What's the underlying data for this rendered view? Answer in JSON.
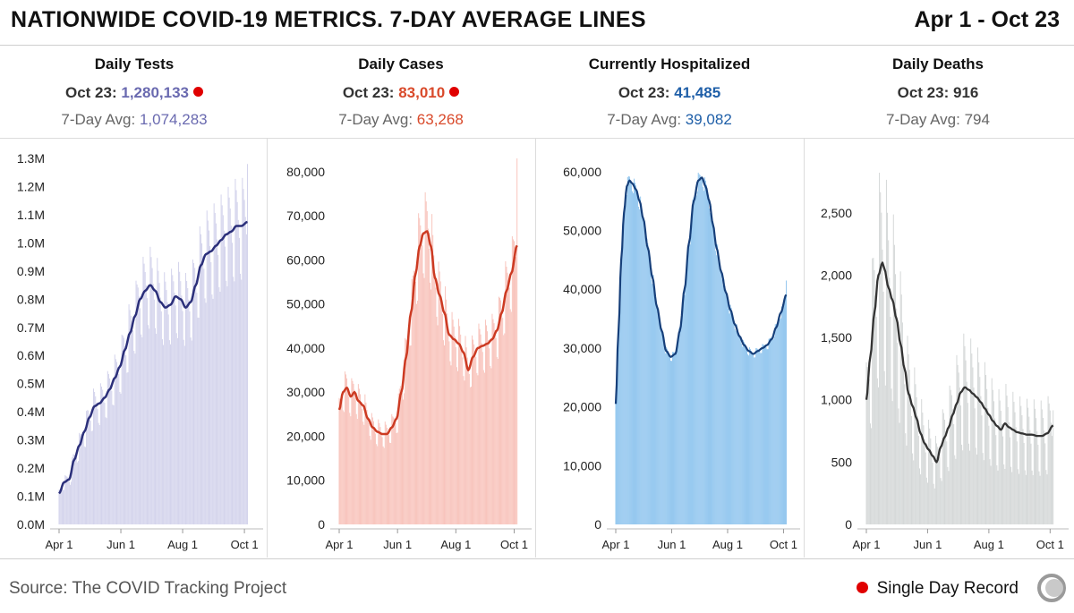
{
  "header": {
    "title": "NATIONWIDE COVID-19 METRICS. 7-DAY AVERAGE LINES",
    "date_range": "Apr 1 - Oct 23"
  },
  "panels": [
    {
      "title": "Daily Tests",
      "latest_label": "Oct 23:",
      "latest_value": "1,280,133",
      "record": true,
      "avg_label": "7-Day Avg:",
      "avg_value": "1,074,283",
      "latest_color": "#6a6ab0",
      "avg_color": "#6a6ab0"
    },
    {
      "title": "Daily Cases",
      "latest_label": "Oct 23:",
      "latest_value": "83,010",
      "record": true,
      "avg_label": "7-Day Avg:",
      "avg_value": "63,268",
      "latest_color": "#d94a2b",
      "avg_color": "#d94a2b"
    },
    {
      "title": "Currently Hospitalized",
      "latest_label": "Oct 23:",
      "latest_value": "41,485",
      "record": false,
      "avg_label": "7-Day Avg:",
      "avg_value": "39,082",
      "latest_color": "#1f5fa8",
      "avg_color": "#1f5fa8"
    },
    {
      "title": "Daily Deaths",
      "latest_label": "Oct 23:",
      "latest_value": "916",
      "record": false,
      "avg_label": "7-Day Avg:",
      "avg_value": "794",
      "latest_color": "#333333",
      "avg_color": "#666666"
    }
  ],
  "chart_data": [
    {
      "type": "bar",
      "title": "Daily Tests",
      "x_ticks": [
        "Apr 1",
        "Jun 1",
        "Aug 1",
        "Oct 1"
      ],
      "y_ticks": [
        "0.0M",
        "0.1M",
        "0.2M",
        "0.3M",
        "0.4M",
        "0.5M",
        "0.6M",
        "0.7M",
        "0.8M",
        "0.9M",
        "1.0M",
        "1.1M",
        "1.2M",
        "1.3M"
      ],
      "ylim": [
        0,
        1300000
      ],
      "bar_color": "#d4d4ec",
      "line_color": "#2b2f7a",
      "avg_keyframes": [
        [
          0,
          110000
        ],
        [
          5,
          150000
        ],
        [
          10,
          160000
        ],
        [
          15,
          230000
        ],
        [
          20,
          280000
        ],
        [
          25,
          330000
        ],
        [
          30,
          380000
        ],
        [
          35,
          420000
        ],
        [
          40,
          430000
        ],
        [
          45,
          450000
        ],
        [
          50,
          480000
        ],
        [
          55,
          520000
        ],
        [
          60,
          560000
        ],
        [
          65,
          620000
        ],
        [
          70,
          680000
        ],
        [
          75,
          740000
        ],
        [
          80,
          800000
        ],
        [
          85,
          830000
        ],
        [
          90,
          850000
        ],
        [
          95,
          830000
        ],
        [
          100,
          790000
        ],
        [
          105,
          770000
        ],
        [
          110,
          780000
        ],
        [
          115,
          810000
        ],
        [
          120,
          800000
        ],
        [
          125,
          770000
        ],
        [
          130,
          790000
        ],
        [
          135,
          850000
        ],
        [
          140,
          920000
        ],
        [
          145,
          960000
        ],
        [
          150,
          970000
        ],
        [
          155,
          990000
        ],
        [
          160,
          1010000
        ],
        [
          165,
          1030000
        ],
        [
          170,
          1040000
        ],
        [
          175,
          1060000
        ],
        [
          180,
          1060000
        ],
        [
          186,
          1074283
        ]
      ],
      "bar_peaks": [
        [
          186,
          1280133
        ]
      ],
      "bar_spread": 0.14,
      "line_width": 2.5
    },
    {
      "type": "bar",
      "title": "Daily Cases",
      "x_ticks": [
        "Apr 1",
        "Jun 1",
        "Aug 1",
        "Oct 1"
      ],
      "y_ticks": [
        "0",
        "10,000",
        "20,000",
        "30,000",
        "40,000",
        "50,000",
        "60,000",
        "70,000",
        "80,000"
      ],
      "ylim": [
        0,
        82000
      ],
      "bar_color": "#f8c3bb",
      "line_color": "#cc3a22",
      "avg_keyframes": [
        [
          0,
          26000
        ],
        [
          4,
          30000
        ],
        [
          8,
          31000
        ],
        [
          12,
          29000
        ],
        [
          16,
          30000
        ],
        [
          20,
          28000
        ],
        [
          25,
          27000
        ],
        [
          30,
          24000
        ],
        [
          35,
          22000
        ],
        [
          40,
          21000
        ],
        [
          45,
          20500
        ],
        [
          50,
          20500
        ],
        [
          55,
          22000
        ],
        [
          60,
          24000
        ],
        [
          65,
          30000
        ],
        [
          70,
          38000
        ],
        [
          75,
          48000
        ],
        [
          80,
          57000
        ],
        [
          84,
          63000
        ],
        [
          88,
          66000
        ],
        [
          92,
          66500
        ],
        [
          96,
          63000
        ],
        [
          100,
          56000
        ],
        [
          105,
          52000
        ],
        [
          110,
          48000
        ],
        [
          115,
          43000
        ],
        [
          120,
          42000
        ],
        [
          125,
          41000
        ],
        [
          130,
          39000
        ],
        [
          135,
          35000
        ],
        [
          140,
          38000
        ],
        [
          145,
          40000
        ],
        [
          150,
          40500
        ],
        [
          155,
          41000
        ],
        [
          160,
          42000
        ],
        [
          165,
          44000
        ],
        [
          170,
          48000
        ],
        [
          175,
          53000
        ],
        [
          180,
          57000
        ],
        [
          186,
          63268
        ]
      ],
      "bar_peaks": [
        [
          186,
          83010
        ]
      ],
      "bar_spread": 0.12,
      "line_width": 2.5
    },
    {
      "type": "area",
      "title": "Currently Hospitalized",
      "x_ticks": [
        "Apr 1",
        "Jun 1",
        "Aug 1",
        "Oct 1"
      ],
      "y_ticks": [
        "0",
        "10,000",
        "20,000",
        "30,000",
        "40,000",
        "50,000",
        "60,000"
      ],
      "ylim": [
        0,
        61500
      ],
      "bar_color": "#8ec4ee",
      "line_color": "#163f7a",
      "avg_keyframes": [
        [
          0,
          20500
        ],
        [
          3,
          33000
        ],
        [
          6,
          45000
        ],
        [
          9,
          53000
        ],
        [
          12,
          57500
        ],
        [
          15,
          58500
        ],
        [
          18,
          58000
        ],
        [
          22,
          57000
        ],
        [
          26,
          55000
        ],
        [
          30,
          52000
        ],
        [
          35,
          47000
        ],
        [
          40,
          42000
        ],
        [
          45,
          37000
        ],
        [
          50,
          33000
        ],
        [
          55,
          29500
        ],
        [
          60,
          28500
        ],
        [
          65,
          29000
        ],
        [
          70,
          33000
        ],
        [
          75,
          40000
        ],
        [
          80,
          48000
        ],
        [
          85,
          55000
        ],
        [
          90,
          58500
        ],
        [
          94,
          59000
        ],
        [
          98,
          57500
        ],
        [
          102,
          55000
        ],
        [
          106,
          51000
        ],
        [
          110,
          47000
        ],
        [
          115,
          43000
        ],
        [
          120,
          39500
        ],
        [
          125,
          36500
        ],
        [
          130,
          34000
        ],
        [
          135,
          32000
        ],
        [
          140,
          30500
        ],
        [
          145,
          29500
        ],
        [
          150,
          29000
        ],
        [
          155,
          29500
        ],
        [
          160,
          30000
        ],
        [
          165,
          30500
        ],
        [
          170,
          31500
        ],
        [
          175,
          33500
        ],
        [
          180,
          36000
        ],
        [
          186,
          39082
        ]
      ],
      "bar_peaks": [
        [
          186,
          41485
        ]
      ],
      "bar_spread": 0.02,
      "line_width": 2.2
    },
    {
      "type": "bar",
      "title": "Daily Deaths",
      "x_ticks": [
        "Apr 1",
        "Jun 1",
        "Aug 1",
        "Oct 1"
      ],
      "y_ticks": [
        "0",
        "500",
        "1,000",
        "1,500",
        "2,000",
        "2,500"
      ],
      "ylim": [
        0,
        2750
      ],
      "bar_color": "#d5d8d8",
      "line_color": "#333333",
      "avg_keyframes": [
        [
          0,
          1000
        ],
        [
          4,
          1350
        ],
        [
          8,
          1700
        ],
        [
          12,
          2000
        ],
        [
          16,
          2100
        ],
        [
          18,
          2050
        ],
        [
          22,
          1900
        ],
        [
          26,
          1800
        ],
        [
          30,
          1650
        ],
        [
          34,
          1450
        ],
        [
          38,
          1250
        ],
        [
          42,
          1050
        ],
        [
          46,
          950
        ],
        [
          50,
          850
        ],
        [
          54,
          730
        ],
        [
          58,
          650
        ],
        [
          62,
          600
        ],
        [
          66,
          550
        ],
        [
          70,
          500
        ],
        [
          74,
          620
        ],
        [
          78,
          700
        ],
        [
          82,
          780
        ],
        [
          86,
          880
        ],
        [
          90,
          970
        ],
        [
          94,
          1060
        ],
        [
          98,
          1100
        ],
        [
          102,
          1080
        ],
        [
          106,
          1050
        ],
        [
          110,
          1020
        ],
        [
          114,
          980
        ],
        [
          118,
          930
        ],
        [
          122,
          880
        ],
        [
          126,
          830
        ],
        [
          130,
          790
        ],
        [
          134,
          760
        ],
        [
          138,
          810
        ],
        [
          142,
          780
        ],
        [
          146,
          760
        ],
        [
          150,
          740
        ],
        [
          155,
          730
        ],
        [
          160,
          720
        ],
        [
          165,
          720
        ],
        [
          170,
          710
        ],
        [
          175,
          710
        ],
        [
          180,
          730
        ],
        [
          186,
          794
        ]
      ],
      "bar_peaks": [
        [
          186,
          916
        ]
      ],
      "bar_spread": 0.35,
      "line_width": 2.3
    }
  ],
  "footer": {
    "source": "Source: The COVID Tracking Project",
    "legend_label": "Single Day Record",
    "record_color": "#e00000"
  }
}
